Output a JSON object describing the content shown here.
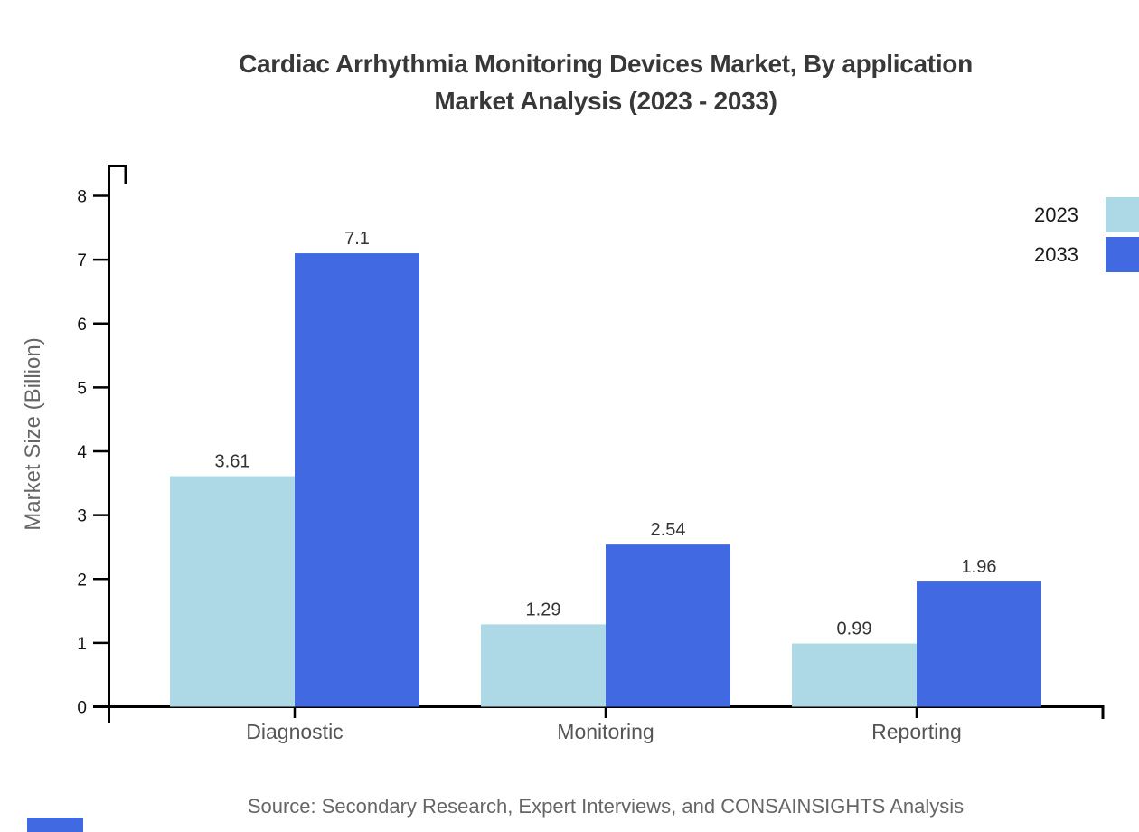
{
  "header": {
    "title_line1": "Cardiac Arrhythmia Monitoring Devices Market, By application",
    "title_line2": "Market Analysis (2023 - 2033)"
  },
  "chart_data": {
    "type": "bar",
    "title": "Cardiac Arrhythmia Monitoring Devices Market, By application Market Analysis (2023 - 2033)",
    "categories": [
      "Diagnostic",
      "Monitoring",
      "Reporting"
    ],
    "series": [
      {
        "name": "2023",
        "color": "#ADD8E6",
        "values": [
          3.61,
          1.29,
          0.99
        ]
      },
      {
        "name": "2033",
        "color": "#4169E1",
        "values": [
          7.1,
          2.54,
          1.96
        ]
      }
    ],
    "value_labels": {
      "2023": [
        "3.61",
        "1.29",
        "0.99"
      ],
      "2033": [
        "7.1",
        "2.54",
        "1.96"
      ]
    },
    "xlabel": "",
    "ylabel": "Market Size (Billion)",
    "ylim": [
      0,
      8
    ],
    "yticks": [
      "0",
      "1",
      "2",
      "3",
      "4",
      "5",
      "6",
      "7",
      "8"
    ],
    "grid": false,
    "legend_position": "top-right-edge"
  },
  "legend": {
    "items": [
      {
        "label": "2023",
        "color": "#ADD8E6"
      },
      {
        "label": "2033",
        "color": "#4169E1"
      }
    ]
  },
  "footer": {
    "source": "Source: Secondary Research, Expert Interviews, and CONSAINSIGHTS Analysis"
  },
  "colors": {
    "series_2023": "#ADD8E6",
    "series_2033": "#4169E1",
    "axis": "#000000",
    "title_text": "#383838",
    "tick_label": "#111111",
    "category_label": "#555555",
    "value_label": "#333333",
    "muted_text": "#666666",
    "logo_fragment": "#4169E1"
  }
}
